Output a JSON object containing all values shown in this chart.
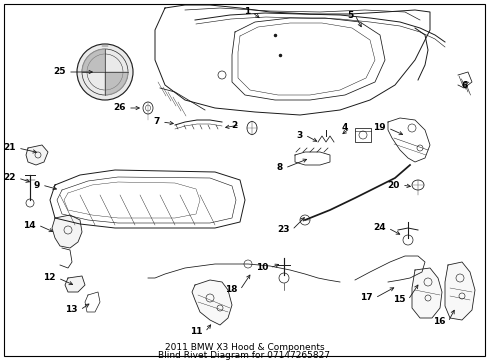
{
  "title_line1": "2011 BMW X3 Hood & Components",
  "title_line2": "Blind Rivet Diagram for 07147265827",
  "title_fontsize": 6.5,
  "background_color": "#ffffff",
  "border_color": "#000000",
  "text_color": "#000000",
  "fig_width": 4.89,
  "fig_height": 3.6,
  "dpi": 100,
  "lc": "#1a1a1a",
  "lw": 0.7
}
